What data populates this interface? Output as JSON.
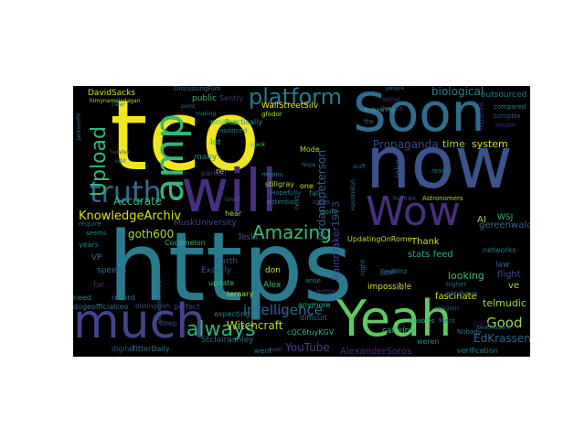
{
  "wordcloud": {
    "words": [
      {
        "text": "tco",
        "color": "#f0e51e"
      },
      {
        "text": "https",
        "color": "#2a7b8e"
      },
      {
        "text": "now",
        "color": "#3b528b"
      },
      {
        "text": "Soon",
        "color": "#2f6c8e"
      },
      {
        "text": "will",
        "color": "#46307e"
      },
      {
        "text": "amp",
        "color": "#35b779"
      },
      {
        "text": "much",
        "color": "#414487"
      },
      {
        "text": "Yeah",
        "color": "#5ec962"
      },
      {
        "text": "truth",
        "color": "#2f6c8e"
      },
      {
        "text": "Wow",
        "color": "#46307e"
      },
      {
        "text": "platform",
        "color": "#2a788e"
      },
      {
        "text": "Upload",
        "color": "#35b779"
      },
      {
        "text": "always",
        "color": "#2fb47c"
      },
      {
        "text": "Amazing",
        "color": "#3fbc73"
      },
      {
        "text": "Good",
        "color": "#9bd93c"
      },
      {
        "text": "intelligence",
        "color": "#31688e"
      },
      {
        "text": "KnowledgeArchiv",
        "color": "#d8e219"
      },
      {
        "text": "goth600",
        "color": "#a5db36"
      },
      {
        "text": "biological",
        "color": "#2c7e8e"
      },
      {
        "text": "Propaganda",
        "color": "#3e4a89"
      },
      {
        "text": "time",
        "color": "#8fd744"
      },
      {
        "text": "system",
        "color": "#cde11d"
      },
      {
        "text": "jordanbpeterson",
        "color": "#38598c"
      },
      {
        "text": "Rainmaker1973",
        "color": "#3f4889"
      },
      {
        "text": "Accurate",
        "color": "#35b779"
      },
      {
        "text": "YouTube",
        "color": "#414487"
      },
      {
        "text": "Witchcraft",
        "color": "#b5de2b"
      },
      {
        "text": "EdKrassen",
        "color": "#31688e"
      },
      {
        "text": "AlexanderSoros",
        "color": "#46307e"
      },
      {
        "text": "telmudic",
        "color": "#a2da37"
      },
      {
        "text": "looking",
        "color": "#3fbc73"
      },
      {
        "text": "stats feed",
        "color": "#28ae80"
      },
      {
        "text": "fascinate",
        "color": "#cde11d"
      },
      {
        "text": "Thank",
        "color": "#cde11d"
      },
      {
        "text": "AI",
        "color": "#a8db34"
      },
      {
        "text": "ve",
        "color": "#a8db34"
      },
      {
        "text": "flight",
        "color": "#3f4889"
      },
      {
        "text": "law",
        "color": "#31688e"
      },
      {
        "text": "WSJ",
        "color": "#35b779"
      },
      {
        "text": "DavidSacks",
        "color": "#d0e11c"
      },
      {
        "text": "lot",
        "color": "#1f9e89"
      },
      {
        "text": "many",
        "color": "#26828e"
      },
      {
        "text": "re",
        "color": "#a0da39"
      },
      {
        "text": "public",
        "color": "#3fbc73"
      },
      {
        "text": "WallStreetSilv",
        "color": "#e5e419"
      },
      {
        "text": "Earth",
        "color": "#3e4c8a"
      },
      {
        "text": "Exactly",
        "color": "#365c8d"
      },
      {
        "text": "Alex",
        "color": "#3fbc73"
      },
      {
        "text": "don",
        "color": "#bade28"
      },
      {
        "text": "VP",
        "color": "#31688e"
      },
      {
        "text": "speech",
        "color": "#2e6e8e"
      },
      {
        "text": "far",
        "color": "#482878"
      },
      {
        "text": "need",
        "color": "#26828e"
      },
      {
        "text": "dogeofficialceo",
        "color": "#2e6f8e"
      },
      {
        "text": "years",
        "color": "#2a788e"
      },
      {
        "text": "Tesla",
        "color": "#3b528b"
      },
      {
        "text": "MuskUniversity",
        "color": "#3f4788"
      },
      {
        "text": "UpdatingOnRome",
        "color": "#b5de2b"
      },
      {
        "text": "caffeine",
        "color": "#3fbc73"
      },
      {
        "text": "impossible",
        "color": "#d8e219"
      },
      {
        "text": "GPU",
        "color": "#440154"
      },
      {
        "text": "gereenwald",
        "color": "#31688e"
      },
      {
        "text": "joke",
        "color": "#38598c"
      },
      {
        "text": "outsourced",
        "color": "#2a788e"
      },
      {
        "text": "verification",
        "color": "#26828e"
      },
      {
        "text": "networks",
        "color": "#2a788e"
      },
      {
        "text": "Cocomelon",
        "color": "#31b57b"
      },
      {
        "text": "Stclairashley",
        "color": "#31688e"
      },
      {
        "text": "update",
        "color": "#3fbc73"
      },
      {
        "text": "ternary",
        "color": "#a5db36"
      },
      {
        "text": "perfect",
        "color": "#3f4889"
      },
      {
        "text": "record",
        "color": "#2e6f8e"
      },
      {
        "text": "anymore",
        "color": "#2fb47c"
      },
      {
        "text": "difficult",
        "color": "#31688e"
      },
      {
        "text": "digital",
        "color": "#38598c"
      },
      {
        "text": "went",
        "color": "#2c728e"
      },
      {
        "text": "expecting",
        "color": "#2c7e8e"
      },
      {
        "text": "deep",
        "color": "#3e4a89"
      },
      {
        "text": "TitterDaily",
        "color": "#2a788e"
      },
      {
        "text": "weren",
        "color": "#25848e"
      },
      {
        "text": "cQC6tuyKGV",
        "color": "#31b57b"
      },
      {
        "text": "Mode",
        "color": "#a5db36"
      },
      {
        "text": "one",
        "color": "#cde11d"
      },
      {
        "text": "fall",
        "color": "#2a788e"
      },
      {
        "text": "done",
        "color": "#25848e"
      },
      {
        "text": "hear",
        "color": "#a2da37"
      },
      {
        "text": "Practically",
        "color": "#21918c"
      },
      {
        "text": "pmarca",
        "color": "#44bf70"
      },
      {
        "text": "Sentry",
        "color": "#443a83"
      },
      {
        "text": "stillgray",
        "color": "#a0da39"
      },
      {
        "text": "parked",
        "color": "#46307e"
      },
      {
        "text": "GOP",
        "color": "#3e4c8a"
      },
      {
        "text": "enables",
        "color": "#2fb47c"
      },
      {
        "text": "religion",
        "color": "#3e4c8a"
      },
      {
        "text": "higher",
        "color": "#31688e"
      },
      {
        "text": "garybasin",
        "color": "#2c728e"
      },
      {
        "text": "social",
        "color": "#46307e"
      },
      {
        "text": "threats",
        "color": "#443a83"
      },
      {
        "text": "GodBlitz",
        "color": "#2e6e8e"
      },
      {
        "text": "complex",
        "color": "#3b528b"
      },
      {
        "text": "innate",
        "color": "#46307e"
      },
      {
        "text": "reported",
        "color": "#46307e"
      },
      {
        "text": "compared",
        "color": "#2a788e"
      },
      {
        "text": "bots",
        "color": "#2e6e8e"
      },
      {
        "text": "reality",
        "color": "#2a788e"
      },
      {
        "text": "human",
        "color": "#3e4c8a"
      },
      {
        "text": "require",
        "color": "#31688e"
      },
      {
        "text": "seems",
        "color": "#25848e"
      },
      {
        "text": "distinguish",
        "color": "#3e4a89"
      },
      {
        "text": "issue",
        "color": "#482878"
      },
      {
        "text": "arise",
        "color": "#25848e"
      },
      {
        "text": "brittle",
        "color": "#46307e"
      },
      {
        "text": "Hopefully",
        "color": "#2c728e"
      },
      {
        "text": "means",
        "color": "#2a788e"
      },
      {
        "text": "potential",
        "color": "#2c7e8e"
      },
      {
        "text": "cares",
        "color": "#38598c"
      },
      {
        "text": "next",
        "color": "#2e6e8e"
      },
      {
        "text": "night",
        "color": "#31688e"
      },
      {
        "text": "seen",
        "color": "#3e4c8a"
      },
      {
        "text": "Nobody",
        "color": "#2a788e"
      },
      {
        "text": "Merit",
        "color": "#31688e"
      },
      {
        "text": "bootloaders",
        "color": "#2c728e"
      },
      {
        "text": "nuanced",
        "color": "#2c7e8e"
      },
      {
        "text": "gfodor",
        "color": "#a2da37"
      },
      {
        "text": "clear",
        "color": "#2a788e"
      },
      {
        "text": "ftw",
        "color": "#38598c"
      },
      {
        "text": "people",
        "color": "#2e6e8e"
      },
      {
        "text": "AndrewYNg",
        "color": "#2fb47c"
      },
      {
        "text": "DiscussingFilm",
        "color": "#31688e"
      },
      {
        "text": "himynameisdagan",
        "color": "#a2da37"
      },
      {
        "text": "JacksonPil",
        "color": "#2e6e8e"
      },
      {
        "text": "stevenmarkryan",
        "color": "#31688e"
      },
      {
        "text": "Survive",
        "color": "#3e4c8a"
      },
      {
        "text": "odd",
        "color": "#2c728e"
      },
      {
        "text": "stuck",
        "color": "#44bf70"
      },
      {
        "text": "Nope",
        "color": "#31688e"
      },
      {
        "text": "HanWaBlah",
        "color": "#2a788e"
      },
      {
        "text": "stuff",
        "color": "#31688e"
      },
      {
        "text": "Astronomers",
        "color": "#a2da37"
      },
      {
        "text": "Great",
        "color": "#38598c"
      },
      {
        "text": "even",
        "color": "#3e4c8a"
      },
      {
        "text": "point",
        "color": "#2c728e"
      },
      {
        "text": "making",
        "color": "#2a788e"
      }
    ]
  }
}
